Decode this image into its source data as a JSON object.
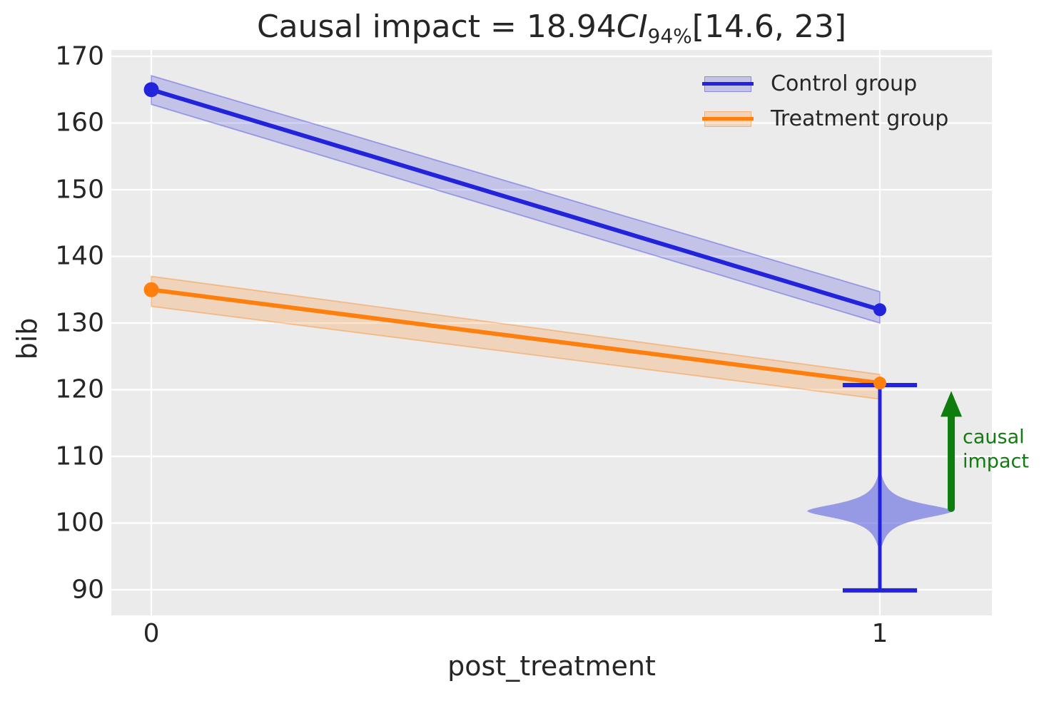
{
  "title": {
    "prefix": "Causal impact = 18.94",
    "ci_label": "CI",
    "ci_sub": "94%",
    "interval": "[14.6, 23]"
  },
  "axes": {
    "xlabel": "post_treatment",
    "ylabel": "bib"
  },
  "legend": {
    "items": [
      {
        "label": "Control group",
        "color_key": "control"
      },
      {
        "label": "Treatment group",
        "color_key": "treatment"
      }
    ]
  },
  "annotation": {
    "line1": "causal",
    "line2": "impact"
  },
  "colors": {
    "control": "#2323dc",
    "treatment": "#ff7f0e",
    "control_band": "rgba(35,35,220,0.20)",
    "control_band_edge": "rgba(35,35,220,0.35)",
    "treatment_band": "rgba(255,127,14,0.22)",
    "treatment_band_edge": "rgba(255,127,14,0.38)",
    "violin_fill": "rgba(80,85,220,0.55)",
    "whisker": "#2323dc",
    "arrow_green": "#0e7d0e",
    "axes_bg": "#ebebeb",
    "grid": "#ffffff",
    "text": "#262626"
  },
  "chart_data": {
    "type": "line",
    "title": "Causal impact = 18.94 CI_94% [14.6, 23]",
    "xlabel": "post_treatment",
    "ylabel": "bib",
    "x": [
      0,
      1
    ],
    "series": [
      {
        "name": "Control group",
        "color_key": "control",
        "values": [
          165,
          132
        ],
        "ci_low": [
          162.8,
          130.0
        ],
        "ci_high": [
          167.1,
          134.7
        ]
      },
      {
        "name": "Treatment group",
        "color_key": "treatment",
        "values": [
          135,
          121
        ],
        "ci_low": [
          132.5,
          118.6
        ],
        "ci_high": [
          137.0,
          122.3
        ]
      }
    ],
    "violin": {
      "x": 1,
      "center": 101.8,
      "gamma": 1.55,
      "max_halfwidth_x": 0.1,
      "v_min": 96.6,
      "v_max": 107.4,
      "whisker_low": 89.9,
      "whisker_high": 120.7,
      "cap_halfwidth_x": 0.051
    },
    "arrow": {
      "x": 1.098,
      "v_from": 102.2,
      "v_to": 119.8,
      "label": "causal impact"
    },
    "xlim": [
      -0.0549,
      1.1538
    ],
    "ylim": [
      86.15,
      170.96
    ],
    "xticks": [
      0,
      1
    ],
    "yticks": [
      90,
      100,
      110,
      120,
      130,
      140,
      150,
      160,
      170
    ],
    "grid": true,
    "legend_position": "upper right"
  }
}
